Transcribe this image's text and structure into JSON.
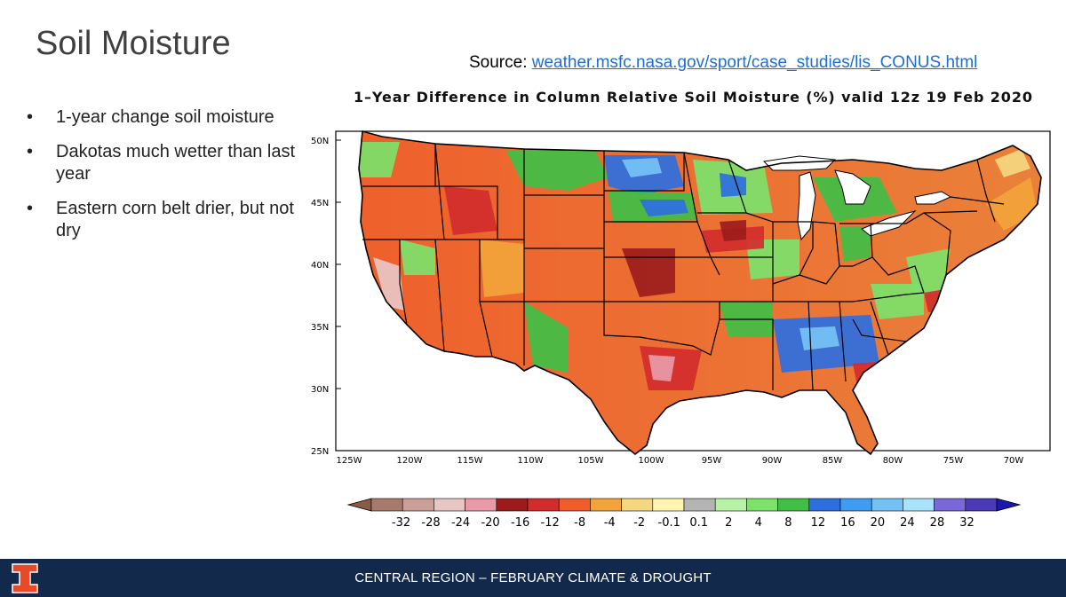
{
  "slide": {
    "title": "Soil Moisture",
    "source_label": "Source: ",
    "source_link": "weather.msfc.nasa.gov/sport/case_studies/lis_CONUS.html",
    "bullets": [
      "1-year change soil moisture",
      "Dakotas much wetter than last year",
      "Eastern corn belt drier, but not dry"
    ],
    "footer": "CENTRAL REGION – FEBRUARY CLIMATE & DROUGHT",
    "bullet_glyph": "•"
  },
  "map": {
    "title": "1–Year Difference in Column Relative Soil Moisture (%) valid 12z 19 Feb 2020",
    "lat_labels": [
      "50N",
      "45N",
      "40N",
      "35N",
      "30N",
      "25N"
    ],
    "lon_labels": [
      "125W",
      "120W",
      "115W",
      "110W",
      "105W",
      "100W",
      "95W",
      "90W",
      "85W",
      "80W",
      "75W",
      "70W"
    ],
    "colorbar": {
      "labels": [
        "-32",
        "-28",
        "-24",
        "-20",
        "-16",
        "-12",
        "-8",
        "-4",
        "-2",
        "-0.1",
        "0.1",
        "2",
        "4",
        "8",
        "12",
        "16",
        "20",
        "24",
        "28",
        "32"
      ],
      "colors": [
        "#8b5a44",
        "#a87a6c",
        "#c99f98",
        "#e8c6c4",
        "#e89aa8",
        "#9c1c1c",
        "#d22d2d",
        "#ef5d2b",
        "#f2a33b",
        "#f5d780",
        "#fff4b0",
        "#b4b4b4",
        "#b7f3a6",
        "#7ce26a",
        "#3fbf45",
        "#2e6fe0",
        "#3f9cf0",
        "#74c2f5",
        "#a9e3fb",
        "#7a67d8",
        "#4a3ab8",
        "#1a18b0"
      ]
    }
  },
  "colors": {
    "footer_bg": "#13294b",
    "logo": "#e84a27",
    "link": "#1f6fd1",
    "land_base": "#e9823a"
  }
}
